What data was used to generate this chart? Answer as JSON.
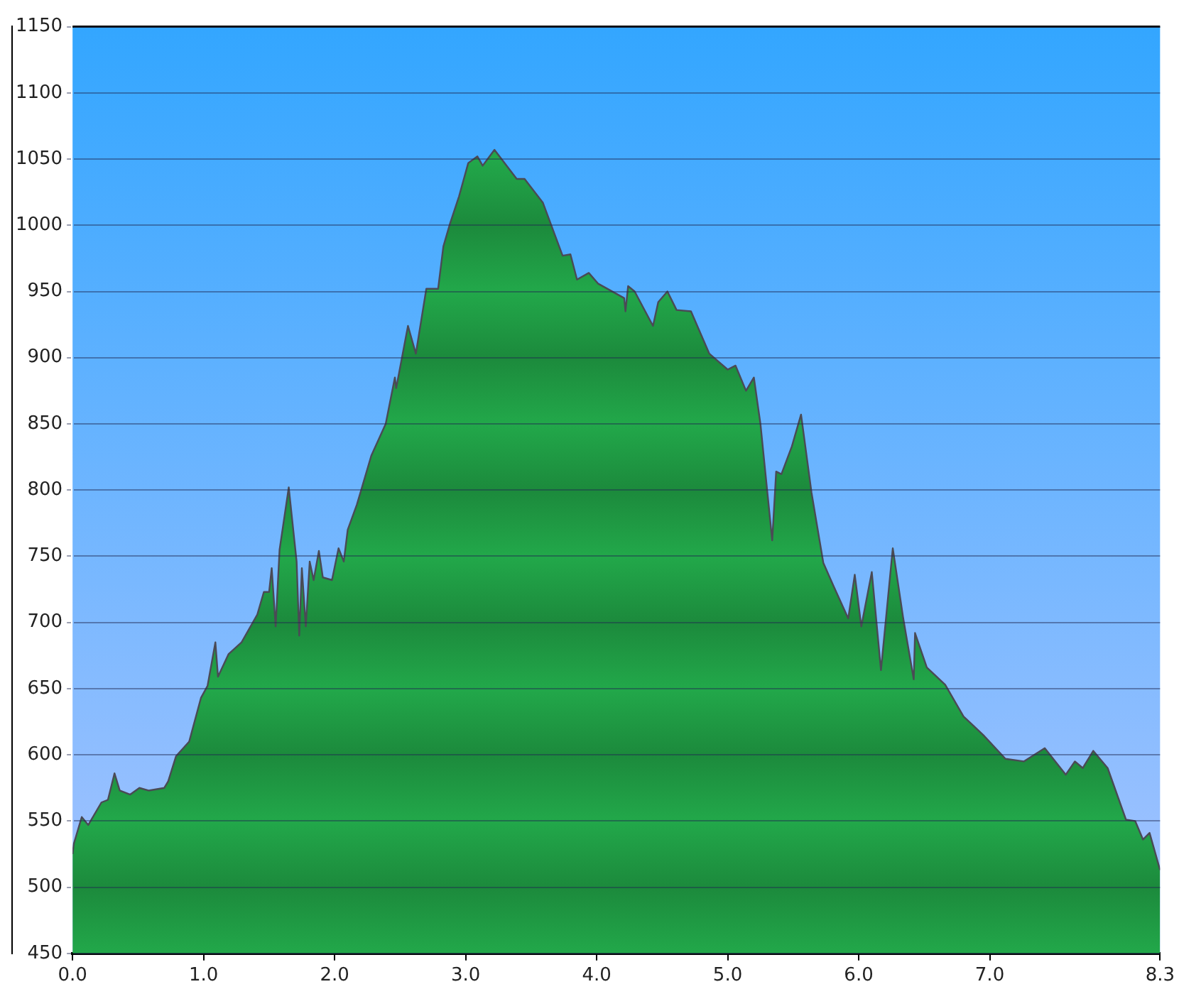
{
  "chart_data": {
    "type": "area",
    "xlim": [
      0,
      8.3
    ],
    "ylim": [
      450,
      1150
    ],
    "xticks": [
      {
        "value": 0,
        "label": "0.0"
      },
      {
        "value": 1,
        "label": "1.0"
      },
      {
        "value": 2,
        "label": "2.0"
      },
      {
        "value": 3,
        "label": "3.0"
      },
      {
        "value": 4,
        "label": "4.0"
      },
      {
        "value": 5,
        "label": "5.0"
      },
      {
        "value": 6,
        "label": "6.0"
      },
      {
        "value": 7,
        "label": "7.0"
      },
      {
        "value": 8.3,
        "label": "8.3"
      }
    ],
    "yticks": [
      450,
      500,
      550,
      600,
      650,
      700,
      750,
      800,
      850,
      900,
      950,
      1000,
      1050,
      1100,
      1150
    ],
    "grid": "y",
    "legend": false,
    "series": [
      {
        "color": "#22a84a",
        "x": [
          0,
          0.01,
          0.07,
          0.12,
          0.22,
          0.27,
          0.32,
          0.36,
          0.44,
          0.51,
          0.58,
          0.7,
          0.73,
          0.79,
          0.89,
          0.98,
          1.03,
          1.09,
          1.11,
          1.19,
          1.29,
          1.41,
          1.46,
          1.5,
          1.52,
          1.55,
          1.58,
          1.65,
          1.71,
          1.73,
          1.75,
          1.78,
          1.81,
          1.84,
          1.88,
          1.91,
          1.98,
          2.03,
          2.07,
          2.1,
          2.17,
          2.28,
          2.39,
          2.46,
          2.47,
          2.56,
          2.62,
          2.7,
          2.79,
          2.83,
          2.88,
          2.95,
          3.02,
          3.09,
          3.13,
          3.22,
          3.39,
          3.45,
          3.59,
          3.74,
          3.8,
          3.85,
          3.94,
          4.01,
          4.21,
          4.22,
          4.24,
          4.29,
          4.43,
          4.47,
          4.54,
          4.61,
          4.72,
          4.86,
          5,
          5.06,
          5.14,
          5.2,
          5.25,
          5.34,
          5.37,
          5.41,
          5.49,
          5.56,
          5.64,
          5.73,
          5.81,
          5.92,
          5.97,
          6.02,
          6.1,
          6.17,
          6.26,
          6.34,
          6.42,
          6.43,
          6.52,
          6.66,
          6.8,
          6.95,
          7.12,
          7.26,
          7.42,
          7.58,
          7.65,
          7.71,
          7.79,
          7.9,
          8.04,
          8.11,
          8.17,
          8.22,
          8.3
        ],
        "values": [
          525,
          533,
          553,
          547,
          564,
          566,
          586,
          573,
          570,
          575,
          573,
          575,
          580,
          599,
          610,
          643,
          652,
          685,
          659,
          676,
          685,
          706,
          723,
          723,
          741,
          697,
          755,
          802,
          746,
          690,
          741,
          697,
          746,
          732,
          754,
          734,
          732,
          756,
          746,
          770,
          789,
          826,
          850,
          885,
          877,
          924,
          903,
          952,
          952,
          984,
          1001,
          1022,
          1047,
          1052,
          1045,
          1057,
          1035,
          1035,
          1017,
          977,
          978,
          959,
          964,
          956,
          945,
          935,
          954,
          950,
          924,
          942,
          950,
          936,
          935,
          903,
          891,
          894,
          875,
          885,
          850,
          762,
          814,
          812,
          833,
          857,
          798,
          745,
          727,
          703,
          736,
          697,
          738,
          664,
          756,
          703,
          657,
          692,
          666,
          653,
          629,
          615,
          597,
          595,
          605,
          585,
          595,
          590,
          603,
          590,
          551,
          550,
          536,
          541,
          513
        ]
      }
    ]
  }
}
